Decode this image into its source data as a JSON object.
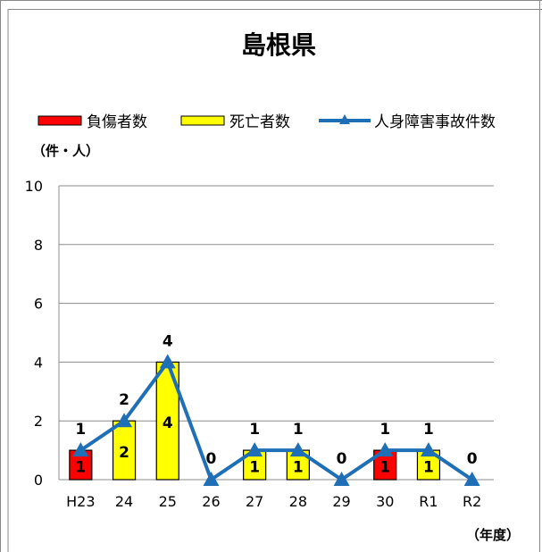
{
  "chart_data": {
    "type": "bar",
    "title": "島根県",
    "ylabel": "（件・人）",
    "xlabel": "（年度）",
    "ylim": [
      0,
      10
    ],
    "yticks": [
      0,
      2,
      4,
      6,
      8,
      10
    ],
    "grid": true,
    "legend_position": "top",
    "categories": [
      "H23",
      "24",
      "25",
      "26",
      "27",
      "28",
      "29",
      "30",
      "R1",
      "R2"
    ],
    "series": [
      {
        "name": "負傷者数",
        "type": "bar",
        "color": "#ff0000",
        "values": [
          1,
          0,
          0,
          0,
          0,
          0,
          0,
          1,
          0,
          0
        ]
      },
      {
        "name": "死亡者数",
        "type": "bar",
        "color": "#ffff00",
        "values": [
          0,
          2,
          4,
          0,
          1,
          1,
          0,
          0,
          1,
          0
        ]
      },
      {
        "name": "人身障害事故件数",
        "type": "line",
        "color": "#1f6fb6",
        "marker": "triangle",
        "values": [
          1,
          2,
          4,
          0,
          1,
          1,
          0,
          1,
          1,
          0
        ]
      }
    ]
  }
}
